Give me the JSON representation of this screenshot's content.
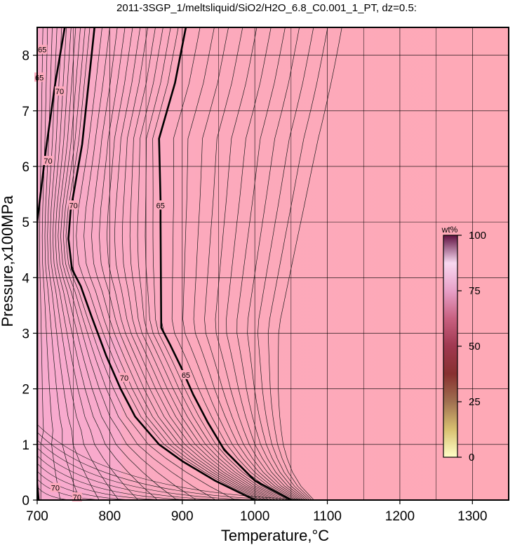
{
  "chart_data": {
    "type": "heatmap",
    "title": "2011-3SGP_1/meltsliquid/SiO2/H2O_6.8_C0.001_1_PT, dz=0.5:",
    "xlabel": "Temperature,°C",
    "ylabel": "Pressure,x100MPa",
    "xlim": [
      700,
      1350
    ],
    "ylim": [
      0,
      8.5
    ],
    "x_ticks": [
      700,
      800,
      900,
      1000,
      1100,
      1200,
      1300
    ],
    "y_ticks": [
      0,
      1,
      2,
      3,
      4,
      5,
      6,
      7,
      8
    ],
    "grid": true,
    "colors": {
      "field_background": "#fea9b6",
      "field_low_temp": "#f7aacb",
      "thin_contour": "#1a1a1a",
      "major_contour": "#000000"
    },
    "colorbar": {
      "label": "wt%",
      "range": [
        0,
        100
      ],
      "ticks": [
        0,
        25,
        50,
        75,
        100
      ],
      "gradient": [
        "#ffffc8",
        "#d8c070",
        "#a07050",
        "#883030",
        "#a03850",
        "#c86080",
        "#e8a0c8",
        "#f8d8f0",
        "#601040"
      ]
    },
    "major_contours": [
      {
        "level": 70,
        "label": "70",
        "points": [
          [
            702,
            0
          ],
          [
            700,
            0.3
          ],
          [
            700,
            5.0
          ],
          [
            712,
            6.3
          ],
          [
            725,
            7.5
          ],
          [
            738,
            8.5
          ]
        ]
      },
      {
        "level": 70,
        "label": "70",
        "points": [
          [
            1000,
            0
          ],
          [
            945,
            0.35
          ],
          [
            900,
            0.7
          ],
          [
            868,
            1.0
          ],
          [
            835,
            1.5
          ],
          [
            815,
            2.0
          ],
          [
            795,
            2.6
          ],
          [
            775,
            3.3
          ],
          [
            760,
            3.85
          ],
          [
            748,
            4.15
          ],
          [
            743,
            4.7
          ],
          [
            746,
            5.2
          ],
          [
            762,
            6.4
          ],
          [
            779,
            8.5
          ]
        ]
      },
      {
        "level": 65,
        "label": "65",
        "points": [
          [
            1050,
            0
          ],
          [
            1000,
            0.35
          ],
          [
            958,
            0.9
          ],
          [
            935,
            1.4
          ],
          [
            915,
            1.9
          ],
          [
            898,
            2.4
          ],
          [
            883,
            2.8
          ],
          [
            871,
            3.1
          ],
          [
            870,
            5.0
          ],
          [
            870,
            5.4
          ],
          [
            868,
            6.5
          ],
          [
            890,
            7.5
          ],
          [
            905,
            8.5
          ]
        ]
      }
    ],
    "contour_labels": [
      {
        "text": "65",
        "x": 707,
        "y": 8.1
      },
      {
        "text": "65",
        "x": 703,
        "y": 7.6
      },
      {
        "text": "70",
        "x": 731,
        "y": 7.35
      },
      {
        "text": "70",
        "x": 715,
        "y": 6.1
      },
      {
        "text": "70",
        "x": 750,
        "y": 5.3
      },
      {
        "text": "65",
        "x": 870,
        "y": 5.3
      },
      {
        "text": "70",
        "x": 820,
        "y": 2.2
      },
      {
        "text": "65",
        "x": 905,
        "y": 2.25
      },
      {
        "text": "70",
        "x": 725,
        "y": 0.22
      },
      {
        "text": "70",
        "x": 755,
        "y": 0.05
      }
    ]
  }
}
